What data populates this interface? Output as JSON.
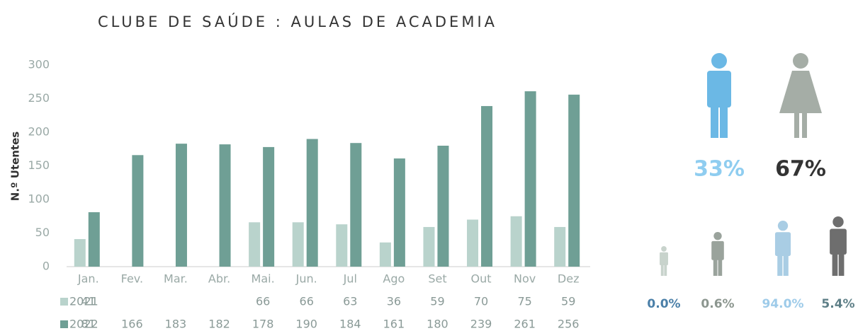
{
  "chart_data": {
    "type": "bar",
    "title": "CLUBE DE SAÚDE : AULAS DE ACADEMIA",
    "y_label": "N.º Utentes",
    "categories": [
      "Jan.",
      "Fev.",
      "Mar.",
      "Abr.",
      "Mai.",
      "Jun.",
      "Jul",
      "Ago",
      "Set",
      "Out",
      "Nov",
      "Dez"
    ],
    "series": [
      {
        "name": "2021",
        "color": "#b9d3cc",
        "values": [
          41,
          null,
          null,
          null,
          66,
          66,
          63,
          36,
          59,
          70,
          75,
          59
        ]
      },
      {
        "name": "2022",
        "color": "#6f9f95",
        "values": [
          81,
          166,
          183,
          182,
          178,
          190,
          184,
          161,
          180,
          239,
          261,
          256
        ]
      }
    ],
    "ylim": [
      0,
      300
    ],
    "yticks": [
      0,
      50,
      100,
      150,
      200,
      250,
      300
    ],
    "grid": false
  },
  "gender": {
    "values": [
      33,
      67
    ],
    "value_labels": [
      "33%",
      "67%"
    ],
    "colors": [
      "#6bb8e5",
      "#a5ada6"
    ],
    "label_colors": [
      "#8fcdf0",
      "#333333"
    ]
  },
  "groups": {
    "values": [
      0.0,
      0.6,
      94.0,
      5.4
    ],
    "value_labels": [
      "0.0%",
      "0.6%",
      "94.0%",
      "5.4%"
    ],
    "colors": [
      "#c8d3cc",
      "#9aa39c",
      "#a9cde4",
      "#6e6e6e"
    ],
    "label_colors": [
      "#4a7fa8",
      "#8c968f",
      "#9ecbe9",
      "#5e7f87"
    ]
  }
}
